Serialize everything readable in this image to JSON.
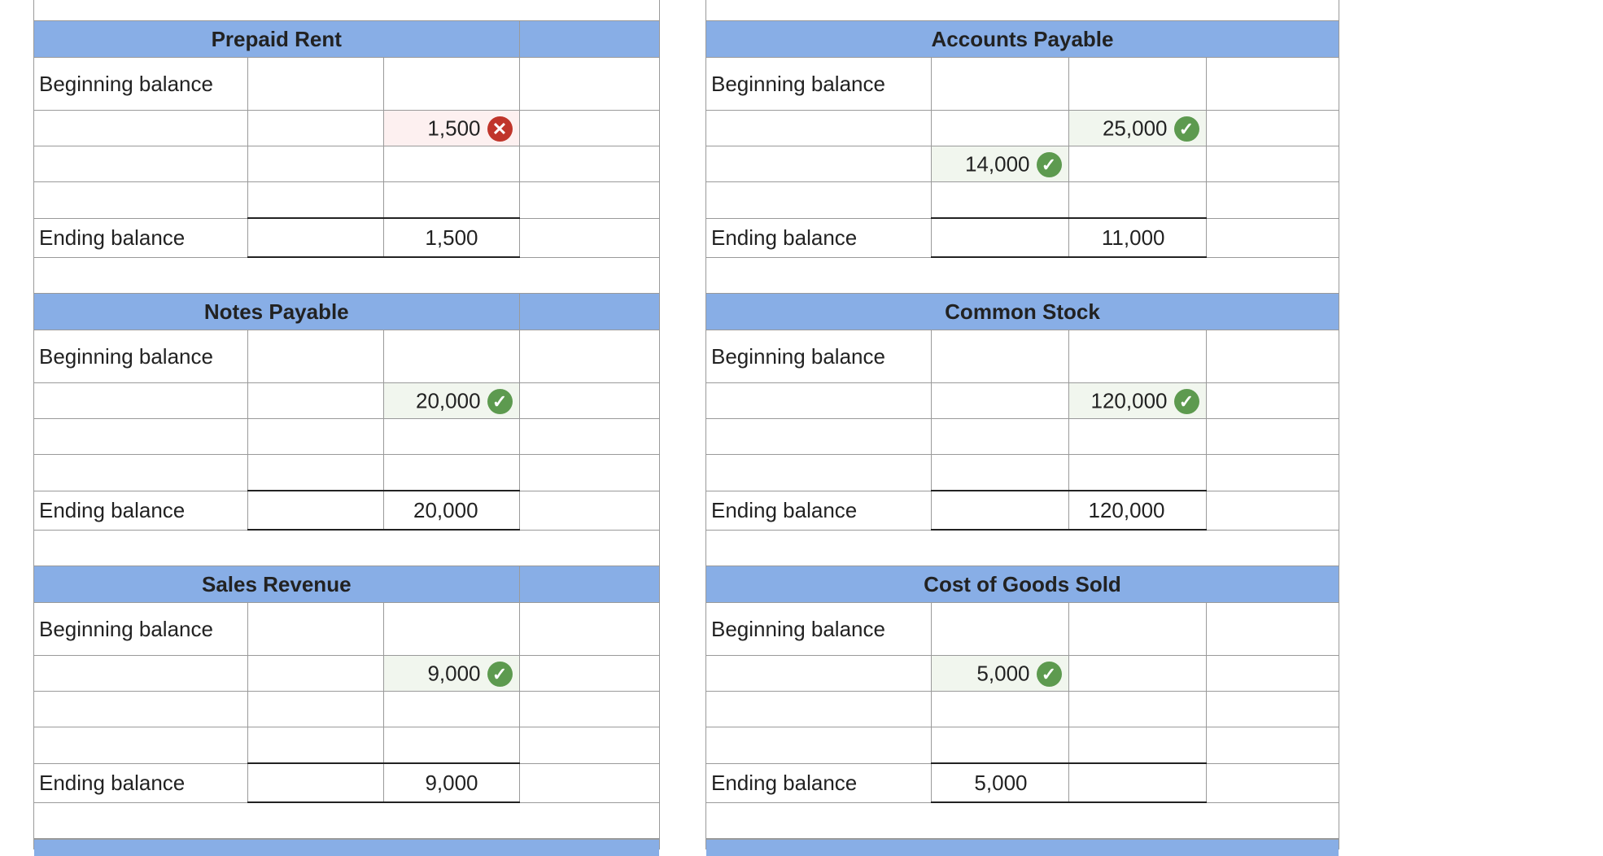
{
  "labels": {
    "beginning": "Beginning balance",
    "ending": "Ending balance"
  },
  "left": [
    {
      "title": "Prepaid Rent",
      "entry_side": "credit",
      "entry": "1,500",
      "entry_row": 1,
      "status": "wrong",
      "ending_side": "credit",
      "ending": "1,500"
    },
    {
      "title": "Notes Payable",
      "entry_side": "credit",
      "entry": "20,000",
      "entry_row": 1,
      "status": "correct",
      "ending_side": "credit",
      "ending": "20,000"
    },
    {
      "title": "Sales Revenue",
      "entry_side": "credit",
      "entry": "9,000",
      "entry_row": 1,
      "status": "correct",
      "ending_side": "credit",
      "ending": "9,000"
    }
  ],
  "right": [
    {
      "title": "Accounts Payable",
      "credit_entry": "25,000",
      "credit_status": "correct",
      "debit_entry": "14,000",
      "debit_status": "correct",
      "ending_side": "credit",
      "ending": "11,000"
    },
    {
      "title": "Common Stock",
      "credit_entry": "120,000",
      "credit_status": "correct",
      "ending_side": "credit",
      "ending": "120,000"
    },
    {
      "title": "Cost of Goods Sold",
      "debit_entry": "5,000",
      "debit_status": "correct",
      "ending_side": "debit",
      "ending": "5,000"
    }
  ],
  "icons": {
    "correct": "check-circle-icon",
    "wrong": "x-circle-icon"
  },
  "colors": {
    "header": "#88aee6",
    "correct": "#5d9a4f",
    "wrong": "#c0352b"
  }
}
